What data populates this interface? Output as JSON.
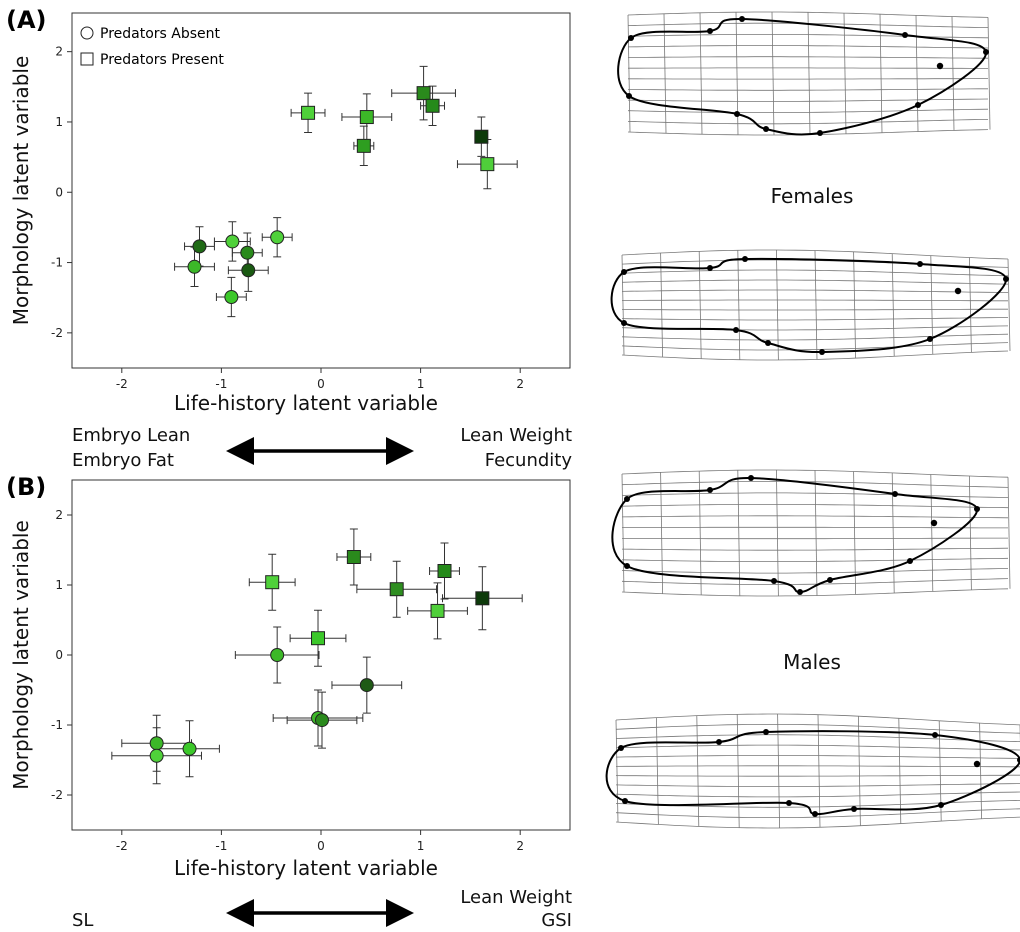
{
  "chart_data": [
    {
      "type": "scatter",
      "panel_label": "(A)",
      "xlabel": "Life-history latent variable",
      "ylabel": "Morphology latent variable",
      "xlim": [
        -2.5,
        2.5
      ],
      "ylim": [
        -2.5,
        2.55
      ],
      "xticks": [
        -2,
        -1,
        0,
        1,
        2
      ],
      "yticks": [
        -2,
        -1,
        0,
        1,
        2
      ],
      "legend": "upper left",
      "series": [
        {
          "name": "Predators Absent",
          "marker": "circle",
          "x": [
            -1.22,
            -1.27,
            -0.89,
            -0.74,
            -0.73,
            -0.44,
            -0.9
          ],
          "values": [
            -0.77,
            -1.06,
            -0.7,
            -0.86,
            -1.11,
            -0.64,
            -1.49
          ],
          "xerr": [
            0.15,
            0.2,
            0.18,
            0.15,
            0.2,
            0.15,
            0.15
          ],
          "yerr": [
            0.28,
            0.28,
            0.28,
            0.28,
            0.3,
            0.28,
            0.28
          ],
          "colors": [
            "#1f6a15",
            "#3cb828",
            "#4fd13a",
            "#2a8a1c",
            "#1a5a12",
            "#4fd13a",
            "#3cc82a"
          ]
        },
        {
          "name": "Predators Present",
          "marker": "square",
          "x": [
            -0.13,
            0.46,
            0.43,
            1.03,
            1.12,
            1.61,
            1.67
          ],
          "values": [
            1.13,
            1.07,
            0.66,
            1.41,
            1.23,
            0.79,
            0.4
          ],
          "xerr": [
            0.17,
            0.25,
            0.1,
            0.32,
            0.12,
            0.05,
            0.3
          ],
          "yerr": [
            0.28,
            0.33,
            0.28,
            0.38,
            0.28,
            0.28,
            0.35
          ],
          "colors": [
            "#4fd13a",
            "#3cb828",
            "#2e9e20",
            "#2a8a1c",
            "#258a1a",
            "#0d3a0a",
            "#4fcf3a"
          ]
        }
      ],
      "left_labels": [
        "Embryo Lean",
        "Embryo Fat"
      ],
      "right_labels": [
        "Lean Weight",
        "Fecundity"
      ],
      "side_title": "Females"
    },
    {
      "type": "scatter",
      "panel_label": "(B)",
      "xlabel": "Life-history latent variable",
      "ylabel": "Morphology latent variable",
      "xlim": [
        -2.5,
        2.5
      ],
      "ylim": [
        -2.5,
        2.5
      ],
      "xticks": [
        -2,
        -1,
        0,
        1,
        2
      ],
      "yticks": [
        -2,
        -1,
        0,
        1,
        2
      ],
      "series": [
        {
          "marker": "circle",
          "x": [
            -0.44,
            0.46,
            -0.03,
            0.01,
            -1.65,
            -1.32,
            -1.65
          ],
          "values": [
            0.0,
            -0.43,
            -0.9,
            -0.93,
            -1.26,
            -1.34,
            -1.44
          ],
          "xerr": [
            0.42,
            0.35,
            0.45,
            0.35,
            0.35,
            0.3,
            0.45
          ],
          "yerr": [
            0.4,
            0.4,
            0.4,
            0.4,
            0.4,
            0.4,
            0.4
          ],
          "colors": [
            "#3cb828",
            "#1f5a15",
            "#3cb828",
            "#2a8a1c",
            "#3cb828",
            "#3cc82a",
            "#4fd13a"
          ]
        },
        {
          "marker": "square",
          "x": [
            -0.49,
            0.33,
            0.76,
            1.24,
            1.17,
            1.62,
            -0.03
          ],
          "values": [
            1.04,
            1.4,
            0.94,
            1.2,
            0.63,
            0.81,
            0.24
          ],
          "xerr": [
            0.23,
            0.17,
            0.4,
            0.15,
            0.3,
            0.4,
            0.28
          ],
          "yerr": [
            0.4,
            0.4,
            0.4,
            0.4,
            0.4,
            0.45,
            0.4
          ],
          "colors": [
            "#4fd13a",
            "#2a8a1c",
            "#2e8e20",
            "#258a1a",
            "#4fcf3a",
            "#0d3a0a",
            "#3cc82a"
          ]
        }
      ],
      "left_labels": [
        "SL"
      ],
      "right_labels": [
        "Lean Weight",
        "GSI"
      ],
      "side_title": "Males"
    }
  ]
}
